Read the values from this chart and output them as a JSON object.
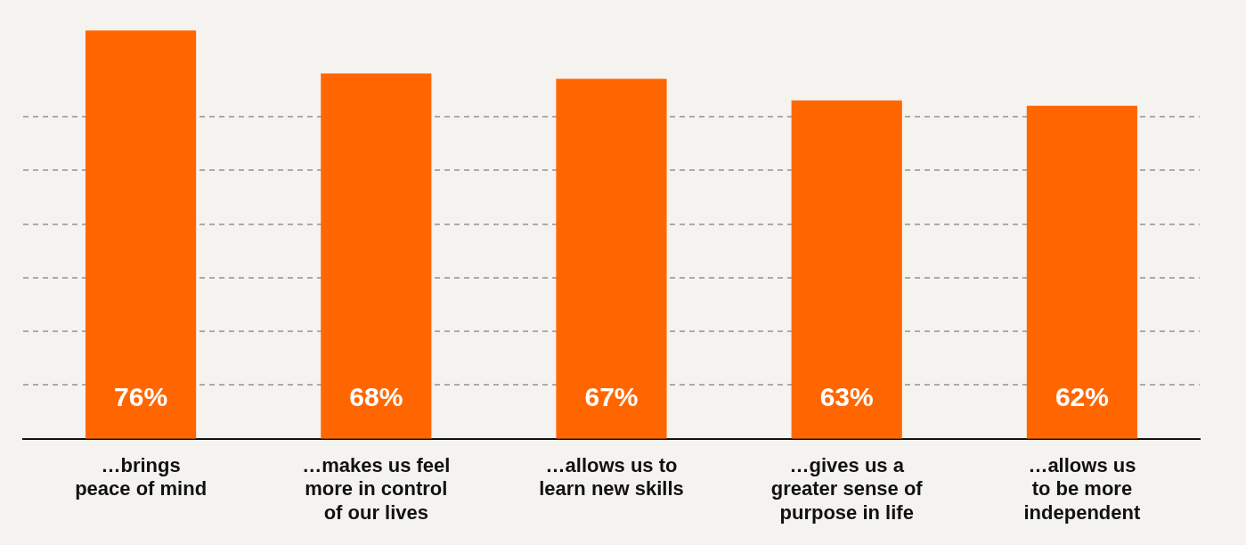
{
  "chart_data": {
    "type": "bar",
    "categories": [
      "…brings\npeace of mind",
      "…makes us feel\nmore in control\nof our lives",
      "…allows us to\nlearn new skills",
      "…gives us a\ngreater sense of\npurpose in life",
      "…allows us\nto be more\nindependent"
    ],
    "values": [
      76,
      68,
      67,
      63,
      62
    ],
    "value_labels": [
      "76%",
      "68%",
      "67%",
      "63%",
      "62%"
    ],
    "color": "#ff6600",
    "yticks": [
      {
        "value": 10,
        "label": null
      },
      {
        "value": 20,
        "label": null
      },
      {
        "value": 30,
        "label": null
      },
      {
        "value": 40,
        "label": null
      },
      {
        "value": 50,
        "label": null
      },
      {
        "value": 60,
        "label": null
      }
    ],
    "grid": "y",
    "line_style": "dashed",
    "legend": false
  }
}
